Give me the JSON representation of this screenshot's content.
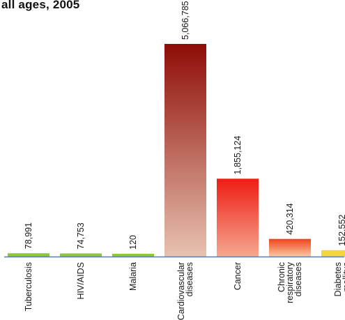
{
  "title": "all ages, 2005",
  "chart_data": {
    "type": "bar",
    "title": "all ages, 2005",
    "xlabel": "",
    "ylabel": "",
    "ylim": [
      0,
      5066785
    ],
    "grid": false,
    "legend": "none",
    "categories": [
      [
        "Tuberculosis"
      ],
      [
        "HIV/AIDS"
      ],
      [
        "Malaria"
      ],
      [
        "Cardiovascular",
        "diseases"
      ],
      [
        "Cancer"
      ],
      [
        "Chronic",
        "respiratory",
        "diseases"
      ],
      [
        "Diabetes",
        "mellitus"
      ]
    ],
    "values": [
      78991,
      74753,
      120,
      5066785,
      1855124,
      420314,
      152552
    ],
    "value_labels": [
      "78,991",
      "74,753",
      "120",
      "5,066,785",
      "1,855,124",
      "420,314",
      "152,552"
    ],
    "colors": [
      [
        "#8dc63f",
        "#8dc63f"
      ],
      [
        "#8dc63f",
        "#8dc63f"
      ],
      [
        "#8dc63f",
        "#8dc63f"
      ],
      [
        "#8e0c06",
        "#e8c2b0"
      ],
      [
        "#ee1c14",
        "#f6a890"
      ],
      [
        "#f0421c",
        "#f8c8a2"
      ],
      [
        "#f6d640",
        "#f6d640"
      ]
    ],
    "baseline_color": "#5a7fa6"
  }
}
